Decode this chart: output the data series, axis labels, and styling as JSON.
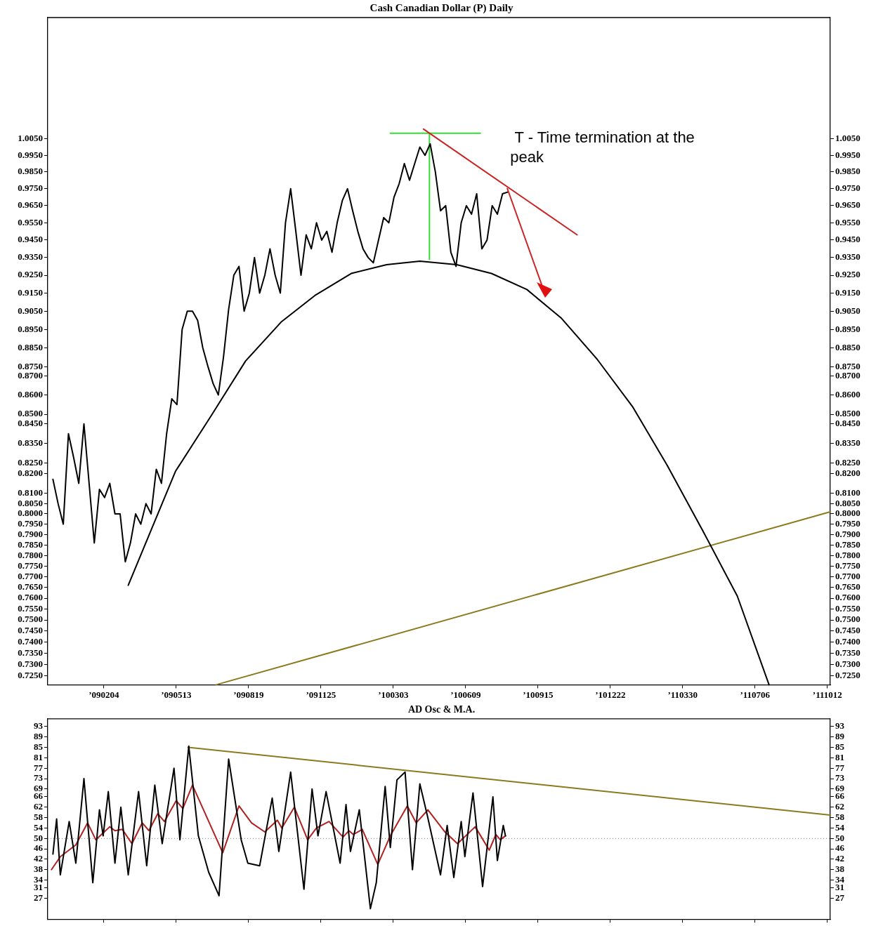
{
  "chart_data": [
    {
      "type": "line",
      "title": "Cash Canadian Dollar (P) Daily",
      "xlim": [
        "2008-11-20",
        "2011-10-16"
      ],
      "xticks": [
        {
          "value": "2009-02-04",
          "label": "’090204"
        },
        {
          "value": "2009-05-13",
          "label": "’090513"
        },
        {
          "value": "2009-08-19",
          "label": "’090819"
        },
        {
          "value": "2009-11-25",
          "label": "’091125"
        },
        {
          "value": "2010-03-03",
          "label": "’100303"
        },
        {
          "value": "2010-06-09",
          "label": "’100609"
        },
        {
          "value": "2010-09-15",
          "label": "’100915"
        },
        {
          "value": "2010-12-22",
          "label": "’101222"
        },
        {
          "value": "2011-03-30",
          "label": "’110330"
        },
        {
          "value": "2011-07-06",
          "label": "’110706"
        },
        {
          "value": "2011-10-12",
          "label": "’111012"
        }
      ],
      "log": "y",
      "ylim": [
        0.721,
        1.082
      ],
      "yticks": [
        {
          "value": 0.725,
          "label": "0.7250"
        },
        {
          "value": 0.73,
          "label": "0.7300"
        },
        {
          "value": 0.735,
          "label": "0.7350"
        },
        {
          "value": 0.74,
          "label": "0.7400"
        },
        {
          "value": 0.745,
          "label": "0.7450"
        },
        {
          "value": 0.75,
          "label": "0.7500"
        },
        {
          "value": 0.755,
          "label": "0.7550"
        },
        {
          "value": 0.76,
          "label": "0.7600"
        },
        {
          "value": 0.765,
          "label": "0.7650"
        },
        {
          "value": 0.77,
          "label": "0.7700"
        },
        {
          "value": 0.775,
          "label": "0.7750"
        },
        {
          "value": 0.78,
          "label": "0.7800"
        },
        {
          "value": 0.785,
          "label": "0.7850"
        },
        {
          "value": 0.79,
          "label": "0.7900"
        },
        {
          "value": 0.795,
          "label": "0.7950"
        },
        {
          "value": 0.8,
          "label": "0.8000"
        },
        {
          "value": 0.805,
          "label": "0.8050"
        },
        {
          "value": 0.81,
          "label": "0.8100"
        },
        {
          "value": 0.82,
          "label": "0.8200"
        },
        {
          "value": 0.825,
          "label": "0.8250"
        },
        {
          "value": 0.835,
          "label": "0.8350"
        },
        {
          "value": 0.845,
          "label": "0.8450"
        },
        {
          "value": 0.85,
          "label": "0.8500"
        },
        {
          "value": 0.86,
          "label": "0.8600"
        },
        {
          "value": 0.87,
          "label": "0.8700"
        },
        {
          "value": 0.875,
          "label": "0.8750"
        },
        {
          "value": 0.885,
          "label": "0.8850"
        },
        {
          "value": 0.895,
          "label": "0.8950"
        },
        {
          "value": 0.905,
          "label": "0.9050"
        },
        {
          "value": 0.915,
          "label": "0.9150"
        },
        {
          "value": 0.925,
          "label": "0.9250"
        },
        {
          "value": 0.935,
          "label": "0.9350"
        },
        {
          "value": 0.945,
          "label": "0.9450"
        },
        {
          "value": 0.955,
          "label": "0.9550"
        },
        {
          "value": 0.965,
          "label": "0.9650"
        },
        {
          "value": 0.975,
          "label": "0.9750"
        },
        {
          "value": 0.985,
          "label": "0.9850"
        },
        {
          "value": 0.995,
          "label": "0.9950"
        },
        {
          "value": 1.005,
          "label": "1.0050"
        }
      ],
      "series": [
        {
          "type": "line",
          "color": "#000000",
          "x": [
            "2008-11-27",
            "2008-12-04",
            "2008-12-11",
            "2008-12-18",
            "2008-12-25",
            "2009-01-01",
            "2009-01-08",
            "2009-01-15",
            "2009-01-22",
            "2009-01-29",
            "2009-02-05",
            "2009-02-12",
            "2009-02-19",
            "2009-02-26",
            "2009-03-05",
            "2009-03-12",
            "2009-03-19",
            "2009-03-26",
            "2009-04-02",
            "2009-04-09",
            "2009-04-16",
            "2009-04-23",
            "2009-04-30",
            "2009-05-07",
            "2009-05-14",
            "2009-05-21",
            "2009-05-28",
            "2009-06-04",
            "2009-06-11",
            "2009-06-18",
            "2009-06-25",
            "2009-07-02",
            "2009-07-09",
            "2009-07-16",
            "2009-07-23",
            "2009-07-30",
            "2009-08-06",
            "2009-08-13",
            "2009-08-20",
            "2009-08-27",
            "2009-09-03",
            "2009-09-10",
            "2009-09-17",
            "2009-09-24",
            "2009-10-01",
            "2009-10-08",
            "2009-10-15",
            "2009-10-22",
            "2009-10-29",
            "2009-11-05",
            "2009-11-12",
            "2009-11-19",
            "2009-11-26",
            "2009-12-03",
            "2009-12-10",
            "2009-12-17",
            "2009-12-24",
            "2009-12-31",
            "2010-01-07",
            "2010-01-14",
            "2010-01-21",
            "2010-01-28",
            "2010-02-04",
            "2010-02-11",
            "2010-02-18",
            "2010-02-25",
            "2010-03-04",
            "2010-03-11",
            "2010-03-18",
            "2010-03-25",
            "2010-04-01",
            "2010-04-08",
            "2010-04-15",
            "2010-04-22",
            "2010-04-29",
            "2010-05-06",
            "2010-05-13",
            "2010-05-20",
            "2010-05-27",
            "2010-06-03",
            "2010-06-10",
            "2010-06-17",
            "2010-06-24",
            "2010-07-01",
            "2010-07-08",
            "2010-07-15",
            "2010-07-22",
            "2010-07-29",
            "2010-08-05"
          ],
          "values": [
            0.817,
            0.805,
            0.795,
            0.84,
            0.828,
            0.815,
            0.845,
            0.815,
            0.786,
            0.812,
            0.808,
            0.815,
            0.8,
            0.8,
            0.777,
            0.786,
            0.8,
            0.795,
            0.805,
            0.8,
            0.822,
            0.815,
            0.84,
            0.858,
            0.855,
            0.895,
            0.905,
            0.905,
            0.9,
            0.885,
            0.875,
            0.866,
            0.86,
            0.88,
            0.906,
            0.925,
            0.93,
            0.905,
            0.915,
            0.935,
            0.915,
            0.925,
            0.94,
            0.925,
            0.915,
            0.955,
            0.975,
            0.95,
            0.925,
            0.948,
            0.94,
            0.955,
            0.945,
            0.95,
            0.938,
            0.955,
            0.968,
            0.975,
            0.962,
            0.95,
            0.94,
            0.935,
            0.932,
            0.945,
            0.958,
            0.955,
            0.97,
            0.978,
            0.99,
            0.98,
            0.99,
            1.0,
            0.995,
            1.002,
            0.985,
            0.962,
            0.965,
            0.938,
            0.93,
            0.955,
            0.965,
            0.96,
            0.972,
            0.94,
            0.945,
            0.965,
            0.96,
            0.972,
            0.973
          ]
        },
        {
          "type": "line",
          "color": "#000000",
          "x": [
            "2009-03-09",
            "2009-05-12",
            "2009-06-29",
            "2009-08-15",
            "2009-10-02",
            "2009-11-18",
            "2010-01-05",
            "2010-02-22",
            "2010-04-08",
            "2010-05-28",
            "2010-07-14",
            "2010-08-31",
            "2010-10-17",
            "2010-12-04",
            "2011-01-21",
            "2011-03-09",
            "2011-04-26",
            "2011-06-12",
            "2011-07-25"
          ],
          "values": [
            0.766,
            0.821,
            0.849,
            0.878,
            0.899,
            0.914,
            0.926,
            0.931,
            0.933,
            0.931,
            0.926,
            0.917,
            0.901,
            0.879,
            0.854,
            0.824,
            0.792,
            0.761,
            0.721
          ]
        },
        {
          "type": "line",
          "color": "#8c7a1e",
          "x": [
            "2009-07-06",
            "2011-10-16"
          ],
          "values": [
            0.721,
            0.801
          ]
        },
        {
          "type": "line",
          "color": "#cc2222",
          "x": [
            "2010-04-13",
            "2010-11-07"
          ],
          "values": [
            1.011,
            0.948
          ]
        },
        {
          "type": "line",
          "color": "#33dd33",
          "x": [
            "2010-02-27",
            "2010-06-29"
          ],
          "values": [
            1.0085,
            1.0085
          ]
        },
        {
          "type": "line",
          "color": "#33dd33",
          "x": [
            "2010-04-21",
            "2010-04-21"
          ],
          "values": [
            1.0085,
            0.934
          ]
        }
      ],
      "annotations": [
        " T - Time termination at the peak"
      ]
    },
    {
      "type": "line",
      "title": "AD Osc & M.A.",
      "xlim": [
        "2008-11-20",
        "2011-10-16"
      ],
      "xticks": [
        {
          "value": "2009-02-04",
          "label": null
        },
        {
          "value": "2009-05-13",
          "label": null
        },
        {
          "value": "2009-08-19",
          "label": null
        },
        {
          "value": "2009-11-25",
          "label": null
        },
        {
          "value": "2010-03-03",
          "label": null
        },
        {
          "value": "2010-06-09",
          "label": null
        },
        {
          "value": "2010-09-15",
          "label": null
        },
        {
          "value": "2010-12-22",
          "label": null
        },
        {
          "value": "2011-03-30",
          "label": null
        },
        {
          "value": "2011-07-06",
          "label": null
        },
        {
          "value": "2011-10-12",
          "label": null
        }
      ],
      "tick_labels": "y",
      "ylim": [
        19,
        96
      ],
      "yticks": [
        27,
        31,
        34,
        38,
        42,
        46,
        50,
        54,
        58,
        62,
        66,
        69,
        73,
        77,
        81,
        85,
        89,
        93
      ],
      "y2lim": [
        19,
        96
      ],
      "y2ticks": [
        27,
        31,
        34,
        38,
        42,
        46,
        50,
        54,
        58,
        62,
        66,
        69,
        73,
        77,
        81,
        85,
        89,
        93
      ],
      "ref_lines": [
        {
          "axis": "y",
          "value": 50,
          "color": "#808080",
          "line_style": "dotted"
        }
      ],
      "series": [
        {
          "type": "line",
          "color": "#000000",
          "x": [
            "2008-11-27",
            "2008-12-02",
            "2008-12-07",
            "2008-12-19",
            "2008-12-28",
            "2009-01-08",
            "2009-01-20",
            "2009-01-29",
            "2009-02-03",
            "2009-02-10",
            "2009-02-19",
            "2009-02-27",
            "2009-03-09",
            "2009-03-23",
            "2009-04-03",
            "2009-04-14",
            "2009-04-24",
            "2009-05-10",
            "2009-05-18",
            "2009-05-30",
            "2009-06-12",
            "2009-06-26",
            "2009-07-10",
            "2009-07-23",
            "2009-08-09",
            "2009-08-18",
            "2009-09-03",
            "2009-09-20",
            "2009-09-29",
            "2009-10-15",
            "2009-11-02",
            "2009-11-13",
            "2009-11-21",
            "2009-12-02",
            "2009-12-21",
            "2009-12-29",
            "2010-01-04",
            "2010-01-16",
            "2010-01-31",
            "2010-02-08",
            "2010-02-20",
            "2010-02-27",
            "2010-03-08",
            "2010-03-19",
            "2010-03-29",
            "2010-04-08",
            "2010-04-18",
            "2010-05-06",
            "2010-05-15",
            "2010-05-24",
            "2010-06-03",
            "2010-06-08",
            "2010-06-19",
            "2010-07-02",
            "2010-07-16",
            "2010-07-22",
            "2010-07-30",
            "2010-08-02"
          ],
          "values": [
            44,
            57.5,
            36,
            56.5,
            40.5,
            73,
            33,
            61,
            51,
            68,
            40.5,
            62,
            36,
            68,
            39.5,
            70.5,
            48,
            77,
            49.5,
            85.5,
            51,
            37,
            28,
            80.5,
            49.5,
            40.5,
            39.5,
            65.5,
            45,
            75.5,
            30.5,
            69,
            51,
            68,
            40.5,
            63,
            45,
            61,
            23,
            33,
            70,
            46.5,
            72.5,
            75.5,
            38,
            71,
            59,
            36,
            55,
            35,
            56.5,
            43,
            67.5,
            31.5,
            66,
            41.5,
            55,
            51
          ]
        },
        {
          "type": "line",
          "color": "#b02020",
          "x": [
            "2008-11-25",
            "2008-12-07",
            "2008-12-28",
            "2009-01-13",
            "2009-01-24",
            "2009-02-12",
            "2009-02-19",
            "2009-03-01",
            "2009-03-14",
            "2009-03-28",
            "2009-04-06",
            "2009-04-18",
            "2009-04-27",
            "2009-05-13",
            "2009-05-22",
            "2009-06-04",
            "2009-07-15",
            "2009-08-06",
            "2009-08-23",
            "2009-09-10",
            "2009-09-27",
            "2009-10-03",
            "2009-10-20",
            "2009-11-07",
            "2009-11-19",
            "2009-12-06",
            "2009-12-25",
            "2010-01-02",
            "2010-01-08",
            "2010-01-20",
            "2010-02-10",
            "2010-02-27",
            "2010-03-22",
            "2010-04-03",
            "2010-04-19",
            "2010-05-12",
            "2010-05-29",
            "2010-06-22",
            "2010-07-11",
            "2010-07-20",
            "2010-07-26",
            "2010-08-02"
          ],
          "values": [
            38,
            43,
            47.5,
            56,
            49.5,
            54.5,
            53,
            53.5,
            48,
            56,
            53,
            59.5,
            56.5,
            64.5,
            61.5,
            70.5,
            44.5,
            62.5,
            56,
            52.5,
            57,
            54,
            62,
            49.5,
            54,
            56.5,
            50.5,
            53,
            51.5,
            53.5,
            40,
            51,
            62.5,
            56,
            61,
            52.5,
            48,
            54.5,
            45.5,
            51.5,
            49.5,
            51
          ]
        },
        {
          "type": "line",
          "color": "#8c7a1e",
          "x": [
            "2009-05-29",
            "2011-10-16"
          ],
          "values": [
            85,
            59
          ]
        }
      ]
    }
  ]
}
